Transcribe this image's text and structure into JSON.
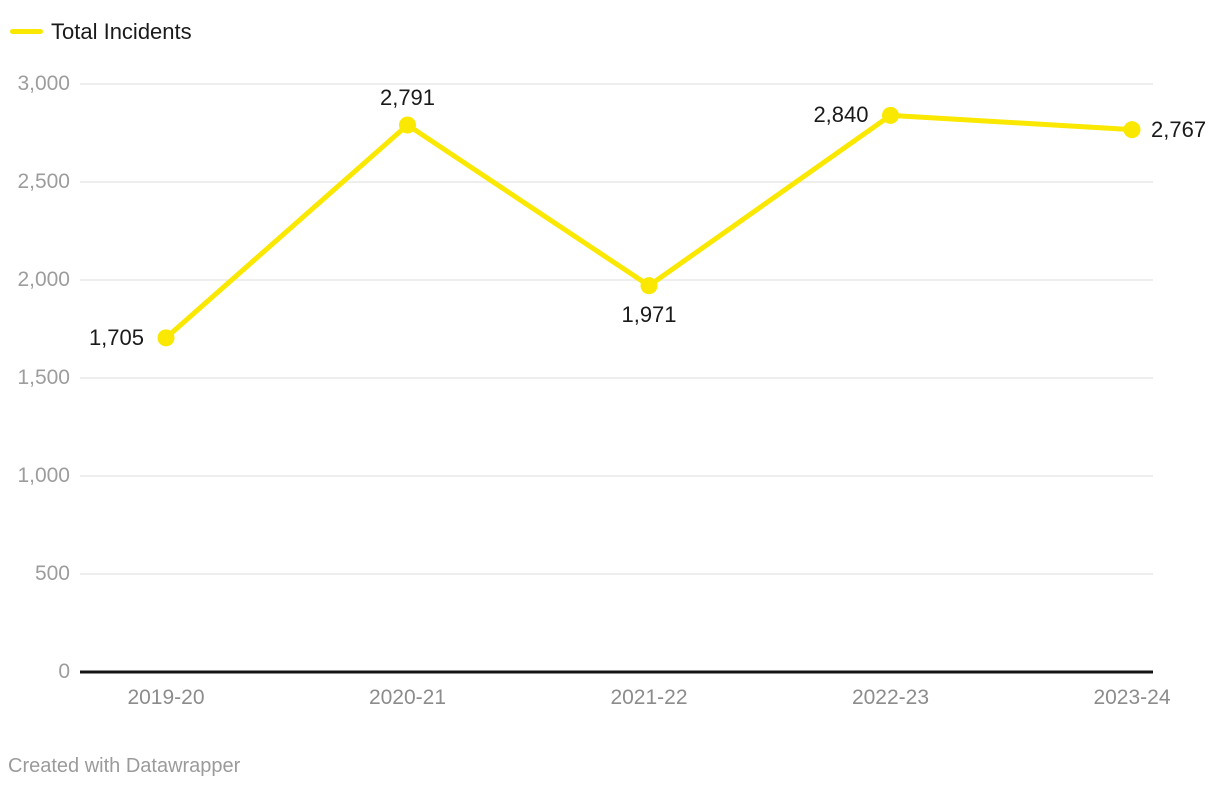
{
  "legend": {
    "position": "top-left",
    "items": [
      {
        "label": "Total Incidents",
        "color": "#fae800"
      }
    ]
  },
  "footer": {
    "attribution": "Created with Datawrapper"
  },
  "chart_data": {
    "type": "line",
    "title": "",
    "xlabel": "",
    "ylabel": "",
    "categories": [
      "2019-20",
      "2020-21",
      "2021-22",
      "2022-23",
      "2023-24"
    ],
    "series": [
      {
        "name": "Total Incidents",
        "color": "#fae800",
        "values": [
          1705,
          2791,
          1971,
          2840,
          2767
        ]
      }
    ],
    "point_labels": [
      "1,705",
      "2,791",
      "1,971",
      "2,840",
      "2,767"
    ],
    "point_label_positions": [
      "left",
      "above",
      "below",
      "left",
      "right"
    ],
    "yticks": [
      {
        "value": 0,
        "label": "0"
      },
      {
        "value": 500,
        "label": "500"
      },
      {
        "value": 1000,
        "label": "1,000"
      },
      {
        "value": 1500,
        "label": "1,500"
      },
      {
        "value": 2000,
        "label": "2,000"
      },
      {
        "value": 2500,
        "label": "2,500"
      },
      {
        "value": 3000,
        "label": "3,000"
      }
    ],
    "ylim": [
      0,
      3000
    ],
    "grid": true,
    "legend_position": "top-left",
    "colors": {
      "line": "#fae800",
      "gridline": "#e8e8e8",
      "baseline": "#141414",
      "value_label": "#1a1a1a",
      "axis_label": "#8c8c8c"
    }
  }
}
